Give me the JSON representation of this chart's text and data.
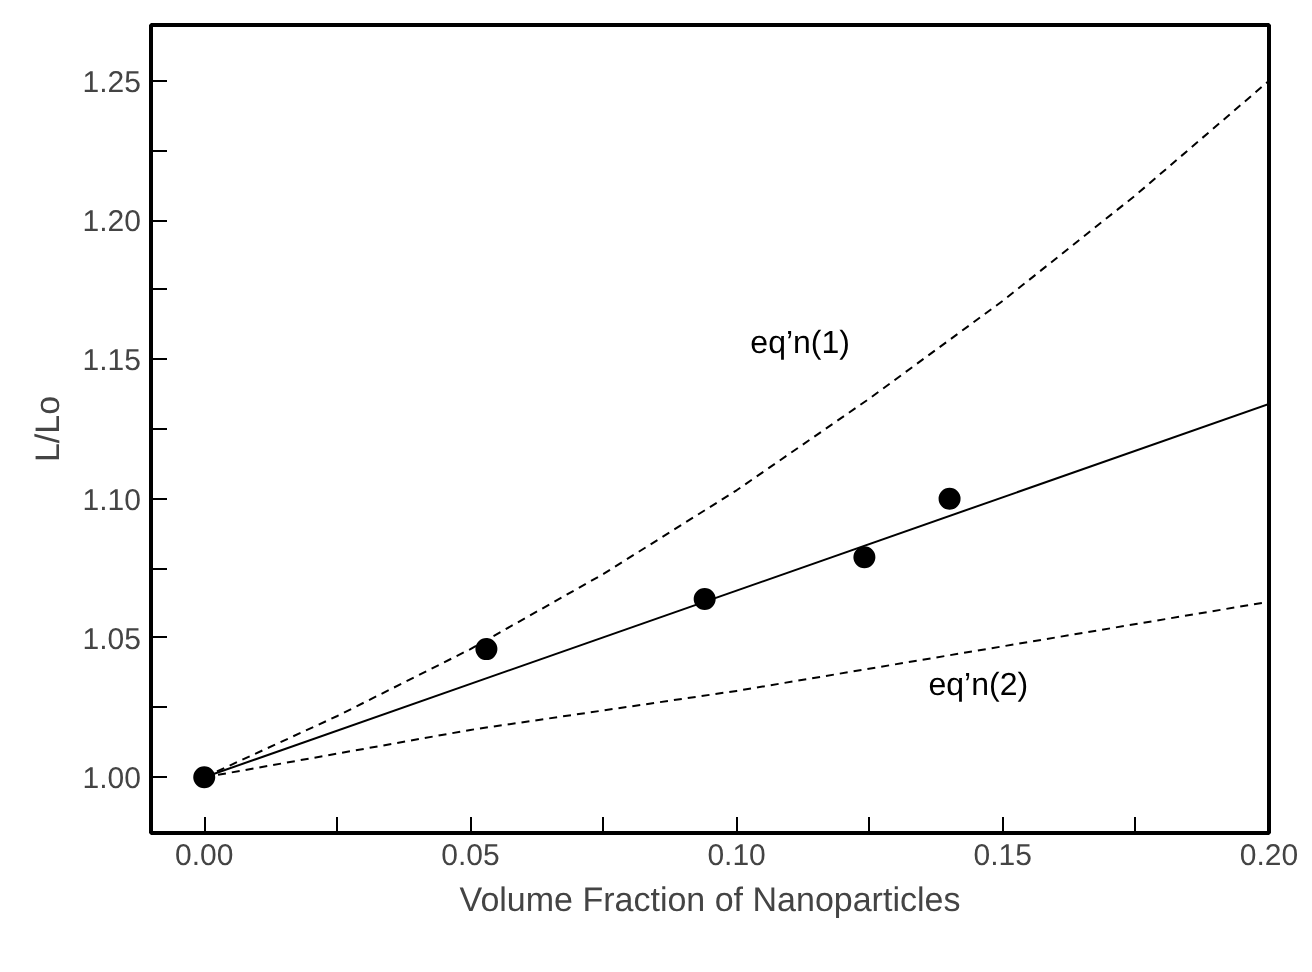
{
  "chart_data": {
    "type": "scatter",
    "xlabel": "Volume Fraction of Nanoparticles",
    "ylabel": "L/Lo",
    "xlim": [
      -0.01,
      0.2
    ],
    "ylim": [
      0.98,
      1.27
    ],
    "xticks": [
      {
        "value": 0,
        "label": "0.00"
      },
      {
        "value": 0.025,
        "label": null
      },
      0.05,
      {
        "value": 0.075,
        "label": null
      },
      {
        "value": 0.1,
        "label": "0.10"
      },
      {
        "value": 0.125,
        "label": null
      },
      0.15,
      {
        "value": 0.175,
        "label": null
      },
      {
        "value": 0.2,
        "label": "0.20"
      }
    ],
    "yticks": [
      {
        "value": 1.0,
        "label": "1.00"
      },
      {
        "value": 1.025,
        "label": null
      },
      1.05,
      {
        "value": 1.075,
        "label": null
      },
      {
        "value": 1.1,
        "label": "1.10"
      },
      {
        "value": 1.125,
        "label": null
      },
      1.15,
      {
        "value": 1.175,
        "label": null
      },
      {
        "value": 1.2,
        "label": "1.20"
      },
      {
        "value": 1.225,
        "label": null
      },
      1.25
    ],
    "grid": false,
    "series": [
      {
        "marker": "circle",
        "color": "#000000",
        "x": [
          0,
          0.053,
          0.094,
          0.124,
          0.14
        ],
        "values": [
          1.0,
          1.046,
          1.064,
          1.079,
          1.1
        ]
      },
      {
        "type": "line",
        "line_style": "solid",
        "color": "#000000",
        "x": [
          0,
          0.2
        ],
        "values": [
          1.0,
          1.134
        ]
      },
      {
        "type": "line",
        "name": "eq’n(1)",
        "line_style": "dashed",
        "color": "#000000",
        "x": [
          0,
          0.025,
          0.05,
          0.075,
          0.1,
          0.125,
          0.15,
          0.175,
          0.2
        ],
        "values": [
          1.0,
          1.022,
          1.046,
          1.073,
          1.103,
          1.136,
          1.171,
          1.209,
          1.25
        ]
      },
      {
        "type": "line",
        "name": "eq’n(2)",
        "line_style": "dashed",
        "color": "#000000",
        "x": [
          0,
          0.05,
          0.1,
          0.15,
          0.2
        ],
        "values": [
          1.0,
          1.017,
          1.031,
          1.047,
          1.063
        ]
      }
    ]
  }
}
